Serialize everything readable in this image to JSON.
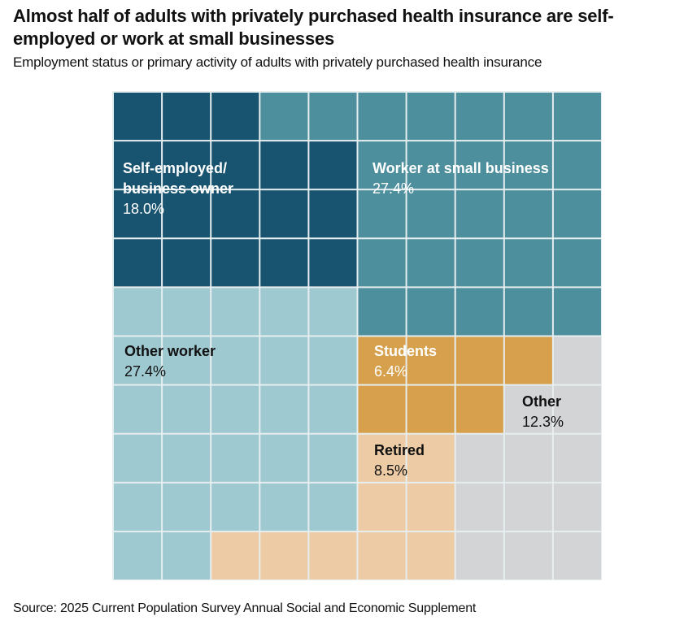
{
  "header": {
    "title": "Almost half of adults with privately purchased health insurance are self-employed or work at small businesses",
    "subtitle": "Employment status or primary activity of adults with privately purchased health insurance"
  },
  "footer": {
    "source": "Source: 2025 Current Population Survey Annual Social and Economic Supplement"
  },
  "chart_data": {
    "type": "waffle",
    "title": "Almost half of adults with privately purchased health insurance are self-employed or work at small businesses",
    "subtitle": "Employment status or primary activity of adults with privately purchased health insurance",
    "grid": {
      "rows": 10,
      "cols": 10,
      "unit": "1 square = 1%"
    },
    "categories": [
      {
        "name": "Self-employed/ business owner",
        "name_lines": [
          "Self-employed/",
          "business owner"
        ],
        "value": 18.0,
        "pct_label": "18.0%",
        "squares": 18,
        "color": "#18536f",
        "label_color": "white"
      },
      {
        "name": "Worker at small business",
        "name_lines": [
          "Worker at small business"
        ],
        "value": 27.4,
        "pct_label": "27.4%",
        "squares": 27,
        "color": "#4e8f9d",
        "label_color": "white"
      },
      {
        "name": "Other worker",
        "name_lines": [
          "Other worker"
        ],
        "value": 27.4,
        "pct_label": "27.4%",
        "squares": 27,
        "color": "#9fc9d0",
        "label_color": "dark"
      },
      {
        "name": "Students",
        "name_lines": [
          "Students"
        ],
        "value": 6.4,
        "pct_label": "6.4%",
        "squares": 7,
        "color": "#d6a04c",
        "label_color": "white"
      },
      {
        "name": "Retired",
        "name_lines": [
          "Retired"
        ],
        "value": 8.5,
        "pct_label": "8.5%",
        "squares": 9,
        "color": "#edcba4",
        "label_color": "dark"
      },
      {
        "name": "Other",
        "name_lines": [
          "Other"
        ],
        "value": 12.3,
        "pct_label": "12.3%",
        "squares": 12,
        "color": "#d3d4d6",
        "label_color": "dark"
      }
    ],
    "cell_assignment": [
      [
        0,
        0,
        0,
        1,
        1,
        1,
        1,
        1,
        1,
        1
      ],
      [
        0,
        0,
        0,
        0,
        0,
        1,
        1,
        1,
        1,
        1
      ],
      [
        0,
        0,
        0,
        0,
        0,
        1,
        1,
        1,
        1,
        1
      ],
      [
        0,
        0,
        0,
        0,
        0,
        1,
        1,
        1,
        1,
        1
      ],
      [
        2,
        2,
        2,
        2,
        2,
        1,
        1,
        1,
        1,
        1
      ],
      [
        2,
        2,
        2,
        2,
        2,
        3,
        3,
        3,
        3,
        5
      ],
      [
        2,
        2,
        2,
        2,
        2,
        3,
        3,
        3,
        5,
        5
      ],
      [
        2,
        2,
        2,
        2,
        2,
        4,
        4,
        5,
        5,
        5
      ],
      [
        2,
        2,
        2,
        2,
        2,
        4,
        4,
        5,
        5,
        5
      ],
      [
        2,
        2,
        4,
        4,
        4,
        4,
        4,
        5,
        5,
        5
      ]
    ],
    "legend": "inline labels"
  }
}
